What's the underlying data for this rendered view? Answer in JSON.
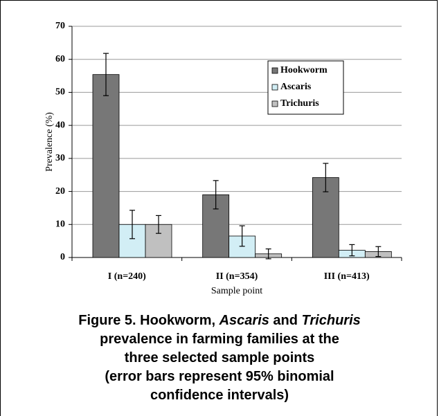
{
  "chart_data": {
    "type": "bar",
    "categories": [
      "I (n=240)",
      "II (n=354)",
      "III (n=413)"
    ],
    "series": [
      {
        "name": "Hookworm",
        "color": "#777777",
        "values": [
          55.4,
          19,
          24.2
        ],
        "errors": [
          6.4,
          4.3,
          4.3
        ]
      },
      {
        "name": "Ascaris",
        "color": "#d2eef5",
        "values": [
          10,
          6.5,
          2.2
        ],
        "errors": [
          4.3,
          3.1,
          1.7
        ]
      },
      {
        "name": "Trichuris",
        "color": "#c0c0c0",
        "values": [
          10,
          1.1,
          1.8
        ],
        "errors": [
          2.7,
          1.5,
          1.5
        ]
      }
    ],
    "ylim": [
      0,
      70
    ],
    "yticks": [
      0,
      10,
      20,
      30,
      40,
      50,
      60,
      70
    ],
    "grid": true,
    "ylabel": "Prevalence (%)",
    "xlabel": "Sample point",
    "legend": "upper right",
    "caption": [
      [
        {
          "text": "Figure 5. Hookworm, "
        },
        {
          "text": "Ascaris",
          "italic": true
        },
        {
          "text": " and "
        },
        {
          "text": "Trichuris",
          "italic": true
        }
      ],
      [
        {
          "text": "prevalence in farming families at the"
        }
      ],
      [
        {
          "text": "three selected sample points"
        }
      ],
      [
        {
          "text": "(error bars represent 95% binomial"
        }
      ],
      [
        {
          "text": "confidence intervals)"
        }
      ]
    ]
  }
}
